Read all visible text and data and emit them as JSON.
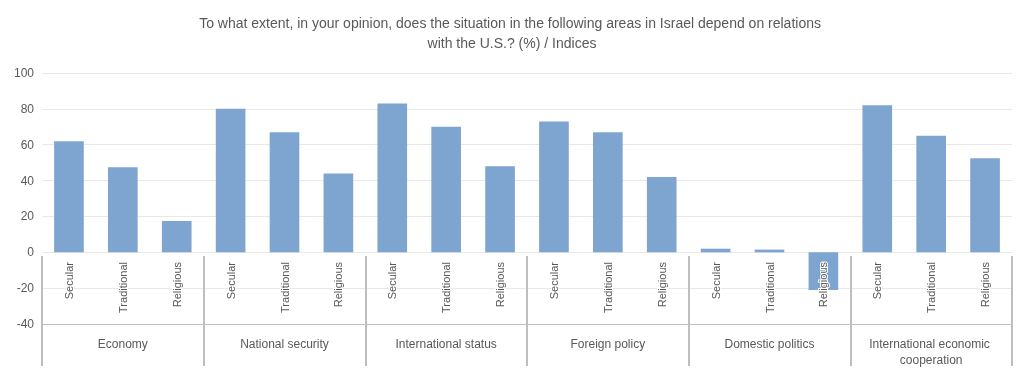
{
  "chart_data": {
    "type": "bar",
    "title": "To what extent, in your opinion, does the situation in the following areas in Israel depend on relations with the U.S.? (%) / Indices",
    "categories": [
      "Economy",
      "National security",
      "International status",
      "Foreign policy",
      "Domestic politics",
      "International economic cooperation"
    ],
    "series": [
      {
        "name": "Secular",
        "color": "#7ea4d0",
        "values": [
          62,
          80,
          83,
          73,
          2,
          82
        ]
      },
      {
        "name": "Traditional",
        "color": "#7ea4d0",
        "values": [
          47.5,
          67,
          70,
          67,
          1.5,
          65
        ]
      },
      {
        "name": "Religious",
        "color": "#7ea4d0",
        "values": [
          17.5,
          44,
          48,
          42,
          -21,
          52.5
        ]
      }
    ],
    "ylim": [
      -40,
      100
    ],
    "yticks": [
      -40,
      -20,
      0,
      20,
      40,
      60,
      80,
      100
    ],
    "grid": "y"
  }
}
